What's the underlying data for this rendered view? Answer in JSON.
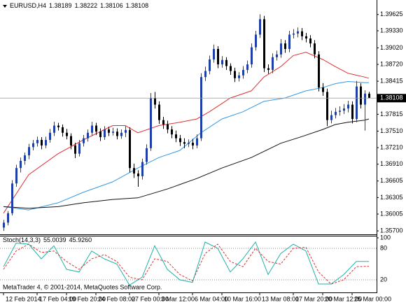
{
  "chart_data": [
    {
      "type": "candlestick",
      "title": "EURUSD,H4",
      "up_color": "#1f3fa8",
      "down_color": "#000000",
      "xlim": [
        -0.8333,
        88.8333
      ],
      "ylim": [
        1.3565,
        1.3985
      ],
      "yticks": [
        1.39625,
        {
          "value": 1.3933,
          "label": "1.39330"
        },
        {
          "value": 1.3902,
          "label": "1.39020"
        },
        {
          "value": 1.3872,
          "label": "1.38720"
        },
        1.38415,
        1.37815,
        {
          "value": 1.3751,
          "label": "1.37510"
        },
        {
          "value": 1.3721,
          "label": "1.37210"
        },
        {
          "value": 1.3691,
          "label": "1.36910"
        },
        1.36605,
        1.36305,
        1.36005,
        {
          "value": 1.357,
          "label": "1.35700"
        }
      ],
      "candles": [
        [
          1.3576,
          1.359,
          1.357,
          1.3585
        ],
        [
          1.3585,
          1.3606,
          1.358,
          1.3602
        ],
        [
          1.3602,
          1.3662,
          1.3598,
          1.3656
        ],
        [
          1.3656,
          1.369,
          1.365,
          1.3684
        ],
        [
          1.3684,
          1.3703,
          1.3676,
          1.3697
        ],
        [
          1.3697,
          1.3712,
          1.369,
          1.3707
        ],
        [
          1.3707,
          1.3728,
          1.37,
          1.3722
        ],
        [
          1.3722,
          1.3735,
          1.3716,
          1.3729
        ],
        [
          1.3729,
          1.3741,
          1.3723,
          1.3735
        ],
        [
          1.3735,
          1.374,
          1.3718,
          1.3725
        ],
        [
          1.3725,
          1.3741,
          1.372,
          1.3735
        ],
        [
          1.3735,
          1.3755,
          1.373,
          1.3748
        ],
        [
          1.3748,
          1.3768,
          1.3742,
          1.3761
        ],
        [
          1.3761,
          1.3766,
          1.3752,
          1.3758
        ],
        [
          1.3758,
          1.3763,
          1.3741,
          1.3748
        ],
        [
          1.3748,
          1.3755,
          1.3736,
          1.3742
        ],
        [
          1.3742,
          1.3747,
          1.3718,
          1.3725
        ],
        [
          1.3725,
          1.373,
          1.3702,
          1.371
        ],
        [
          1.371,
          1.3735,
          1.3705,
          1.3729
        ],
        [
          1.3729,
          1.3744,
          1.3723,
          1.3738
        ],
        [
          1.3738,
          1.3754,
          1.3732,
          1.3748
        ],
        [
          1.3748,
          1.3768,
          1.3742,
          1.3761
        ],
        [
          1.3761,
          1.3766,
          1.3744,
          1.375
        ],
        [
          1.375,
          1.3756,
          1.3733,
          1.374
        ],
        [
          1.374,
          1.376,
          1.3735,
          1.3754
        ],
        [
          1.3754,
          1.3759,
          1.3742,
          1.3748
        ],
        [
          1.3748,
          1.3757,
          1.3743,
          1.375
        ],
        [
          1.375,
          1.3756,
          1.3736,
          1.3742
        ],
        [
          1.3742,
          1.3754,
          1.3737,
          1.3748
        ],
        [
          1.3748,
          1.376,
          1.374,
          1.3753
        ],
        [
          1.3753,
          1.3758,
          1.3676,
          1.3684
        ],
        [
          1.3684,
          1.3692,
          1.3666,
          1.3674
        ],
        [
          1.3674,
          1.368,
          1.365,
          1.3669
        ],
        [
          1.3669,
          1.3701,
          1.3663,
          1.3695
        ],
        [
          1.3695,
          1.3727,
          1.369,
          1.372
        ],
        [
          1.372,
          1.382,
          1.3715,
          1.3811
        ],
        [
          1.3811,
          1.3822,
          1.3792,
          1.3799
        ],
        [
          1.3799,
          1.3805,
          1.3764,
          1.3771
        ],
        [
          1.3771,
          1.3777,
          1.3755,
          1.3763
        ],
        [
          1.3763,
          1.377,
          1.3747,
          1.3754
        ],
        [
          1.3754,
          1.376,
          1.3738,
          1.3745
        ],
        [
          1.3745,
          1.3752,
          1.3731,
          1.3738
        ],
        [
          1.3738,
          1.3744,
          1.3724,
          1.3731
        ],
        [
          1.3731,
          1.3738,
          1.372,
          1.3728
        ],
        [
          1.3728,
          1.3736,
          1.3722,
          1.373
        ],
        [
          1.373,
          1.3737,
          1.3718,
          1.3725
        ],
        [
          1.3725,
          1.3745,
          1.372,
          1.3738
        ],
        [
          1.3738,
          1.3856,
          1.3733,
          1.3849
        ],
        [
          1.3849,
          1.3868,
          1.3842,
          1.386
        ],
        [
          1.386,
          1.3888,
          1.3854,
          1.3881
        ],
        [
          1.3881,
          1.3908,
          1.3875,
          1.39
        ],
        [
          1.39,
          1.3905,
          1.3865,
          1.3872
        ],
        [
          1.3872,
          1.3887,
          1.3866,
          1.388
        ],
        [
          1.388,
          1.3885,
          1.3862,
          1.3869
        ],
        [
          1.3869,
          1.3874,
          1.3853,
          1.386
        ],
        [
          1.386,
          1.3866,
          1.384,
          1.3847
        ],
        [
          1.3847,
          1.3858,
          1.3841,
          1.3852
        ],
        [
          1.3852,
          1.3869,
          1.3846,
          1.3862
        ],
        [
          1.3862,
          1.3879,
          1.3856,
          1.3872
        ],
        [
          1.3872,
          1.391,
          1.3866,
          1.3903
        ],
        [
          1.3903,
          1.3933,
          1.3897,
          1.3926
        ],
        [
          1.3926,
          1.3963,
          1.392,
          1.3954
        ],
        [
          1.3954,
          1.396,
          1.3858,
          1.3865
        ],
        [
          1.3865,
          1.3872,
          1.3855,
          1.3862
        ],
        [
          1.3862,
          1.3892,
          1.3856,
          1.3885
        ],
        [
          1.3885,
          1.3897,
          1.3879,
          1.389
        ],
        [
          1.389,
          1.3918,
          1.3884,
          1.391
        ],
        [
          1.391,
          1.3916,
          1.3893,
          1.39
        ],
        [
          1.39,
          1.3933,
          1.3894,
          1.3926
        ],
        [
          1.3926,
          1.3936,
          1.3919,
          1.3928
        ],
        [
          1.3928,
          1.3939,
          1.3921,
          1.3932
        ],
        [
          1.3932,
          1.3938,
          1.3916,
          1.3923
        ],
        [
          1.3923,
          1.3929,
          1.3912,
          1.3919
        ],
        [
          1.3919,
          1.3925,
          1.3903,
          1.391
        ],
        [
          1.391,
          1.3916,
          1.3883,
          1.389
        ],
        [
          1.389,
          1.3896,
          1.3823,
          1.383
        ],
        [
          1.383,
          1.3838,
          1.3815,
          1.3822
        ],
        [
          1.3822,
          1.3828,
          1.376,
          1.3771
        ],
        [
          1.3771,
          1.3788,
          1.3765,
          1.378
        ],
        [
          1.378,
          1.3793,
          1.3774,
          1.3786
        ],
        [
          1.3786,
          1.3796,
          1.3779,
          1.3788
        ],
        [
          1.3788,
          1.38,
          1.3782,
          1.3792
        ],
        [
          1.3792,
          1.3806,
          1.3785,
          1.3799
        ],
        [
          1.3799,
          1.3805,
          1.3765,
          1.3773
        ],
        [
          1.3773,
          1.3842,
          1.3767,
          1.3832
        ],
        [
          1.3832,
          1.3838,
          1.3792,
          1.3799
        ],
        [
          1.3799,
          1.3825,
          1.3752,
          1.3819
        ],
        [
          1.38189,
          1.38222,
          1.38106,
          1.38108
        ]
      ],
      "series": [
        {
          "color": "#e03030",
          "x": [
            0,
            6,
            13,
            19,
            26,
            29,
            32,
            37,
            42,
            46,
            49,
            54,
            59,
            62,
            66,
            69,
            72,
            76,
            79,
            82,
            86,
            87
          ],
          "values": [
            1.3602,
            1.3672,
            1.371,
            1.3735,
            1.3761,
            1.3761,
            1.3748,
            1.3761,
            1.3767,
            1.3773,
            1.3786,
            1.3811,
            1.3824,
            1.3849,
            1.3868,
            1.3888,
            1.3894,
            1.3881,
            1.3868,
            1.3856,
            1.3849,
            1.3847
          ]
        },
        {
          "color": "#3399e6",
          "x": [
            0,
            6,
            13,
            19,
            26,
            32,
            37,
            42,
            47,
            52,
            57,
            62,
            67,
            72,
            76,
            79,
            82,
            86,
            87
          ],
          "values": [
            1.3614,
            1.3608,
            1.3621,
            1.364,
            1.3659,
            1.3684,
            1.3703,
            1.3716,
            1.3748,
            1.3773,
            1.3786,
            1.3805,
            1.3811,
            1.3824,
            1.383,
            1.3837,
            1.3841,
            1.3839,
            1.3839
          ]
        },
        {
          "color": "#111111",
          "x": [
            0,
            6,
            13,
            19,
            26,
            32,
            39,
            46,
            52,
            59,
            66,
            71,
            76,
            79,
            82,
            86,
            87
          ],
          "values": [
            1.3614,
            1.3611,
            1.3614,
            1.3621,
            1.3627,
            1.363,
            1.3646,
            1.3665,
            1.3684,
            1.3703,
            1.3729,
            1.3741,
            1.3754,
            1.3763,
            1.3767,
            1.3771,
            1.3773
          ]
        }
      ]
    },
    {
      "type": "line",
      "title": "Stoch(14,3,3)",
      "last_values": [
        "55.0039",
        "45.9260"
      ],
      "footer": "MetaTrader 4, © 2001-2014, MetaQuotes Software Corp.",
      "xlim": [
        -0.8333,
        88.8333
      ],
      "ylim": [
        0,
        100
      ],
      "yticks": [
        100,
        80,
        20
      ],
      "xticks": [
        {
          "value": 0,
          "label": "12 Feb 2014"
        },
        {
          "value": 8,
          "label": "17 Feb 04:00"
        },
        {
          "value": 15,
          "label": "19 Feb 20:00"
        },
        {
          "value": 22,
          "label": "24 Feb 08:00"
        },
        {
          "value": 30,
          "label": "27 Feb 00:00"
        },
        {
          "value": 37,
          "label": "3 Mar 12:00"
        },
        {
          "value": 45,
          "label": "6 Mar 04:00"
        },
        {
          "value": 52,
          "label": "10 Mar 16:00"
        },
        {
          "value": 61,
          "label": "13 Mar 08:00"
        },
        {
          "value": 69,
          "label": "17 Mar 20:00"
        },
        {
          "value": 76,
          "label": "20 Mar 12:00"
        },
        {
          "value": 83,
          "label": "25 Mar 00:00"
        }
      ],
      "series": [
        {
          "color": "#20b2aa",
          "dashed": false,
          "x": [
            0,
            3,
            6,
            9,
            12,
            15,
            18,
            21,
            24,
            27,
            30,
            33,
            36,
            39,
            42,
            45,
            48,
            51,
            54,
            57,
            60,
            63,
            66,
            69,
            72,
            75,
            78,
            81,
            84,
            87
          ],
          "values": [
            45,
            90,
            88,
            60,
            85,
            40,
            35,
            75,
            60,
            50,
            10,
            25,
            85,
            40,
            20,
            15,
            92,
            80,
            35,
            60,
            92,
            30,
            70,
            88,
            75,
            12,
            12,
            30,
            55,
            55.0039
          ]
        },
        {
          "color": "#e03030",
          "dashed": true,
          "x": [
            0,
            3,
            6,
            9,
            12,
            15,
            18,
            21,
            24,
            27,
            30,
            33,
            36,
            39,
            42,
            45,
            48,
            51,
            54,
            57,
            60,
            63,
            66,
            69,
            72,
            75,
            78,
            81,
            84,
            87
          ],
          "values": [
            40,
            75,
            88,
            72,
            75,
            55,
            40,
            60,
            68,
            55,
            25,
            20,
            60,
            55,
            30,
            18,
            70,
            88,
            55,
            45,
            80,
            55,
            50,
            80,
            82,
            35,
            12,
            20,
            45,
            45.926
          ]
        }
      ]
    }
  ]
}
